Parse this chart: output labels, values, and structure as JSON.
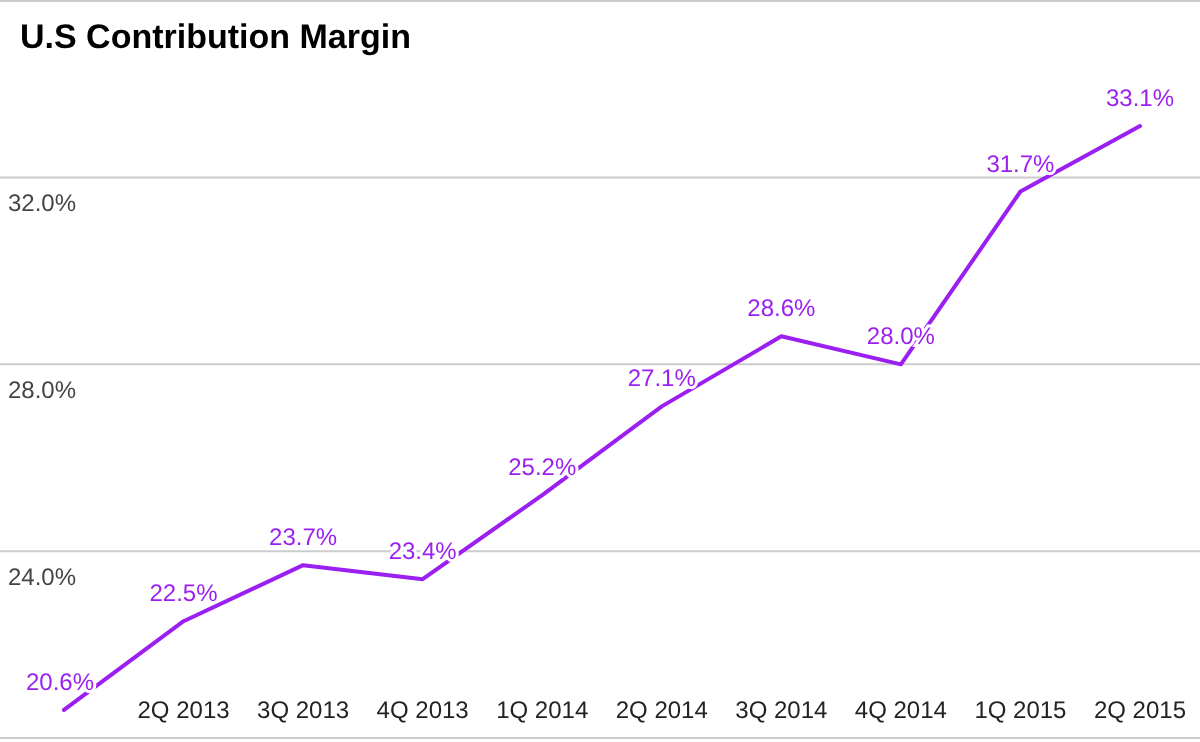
{
  "chart_data": {
    "type": "line",
    "title": "U.S Contribution Margin",
    "categories": [
      null,
      "2Q 2013",
      "3Q 2013",
      "4Q 2013",
      "1Q 2014",
      "2Q 2014",
      "3Q 2014",
      "4Q 2014",
      "1Q 2015",
      "2Q 2015"
    ],
    "series": [
      {
        "color": "#9b1ff0",
        "values": [
          20.6,
          22.5,
          23.7,
          23.4,
          25.2,
          27.1,
          28.6,
          28.0,
          31.7,
          33.1
        ],
        "value_labels": [
          "20.6%",
          "22.5%",
          "23.7%",
          "23.4%",
          "25.2%",
          "27.1%",
          "28.6%",
          "28.0%",
          "31.7%",
          "33.1%"
        ]
      }
    ],
    "ylim": [
      20,
      35.8
    ],
    "yticks": [
      {
        "value": 20,
        "label": null
      },
      {
        "value": 24,
        "label": "24.0%"
      },
      {
        "value": 28,
        "label": "28.0%"
      },
      {
        "value": 32,
        "label": "32.0%"
      }
    ],
    "grid": "y",
    "marker": "none",
    "line_style": "solid"
  }
}
